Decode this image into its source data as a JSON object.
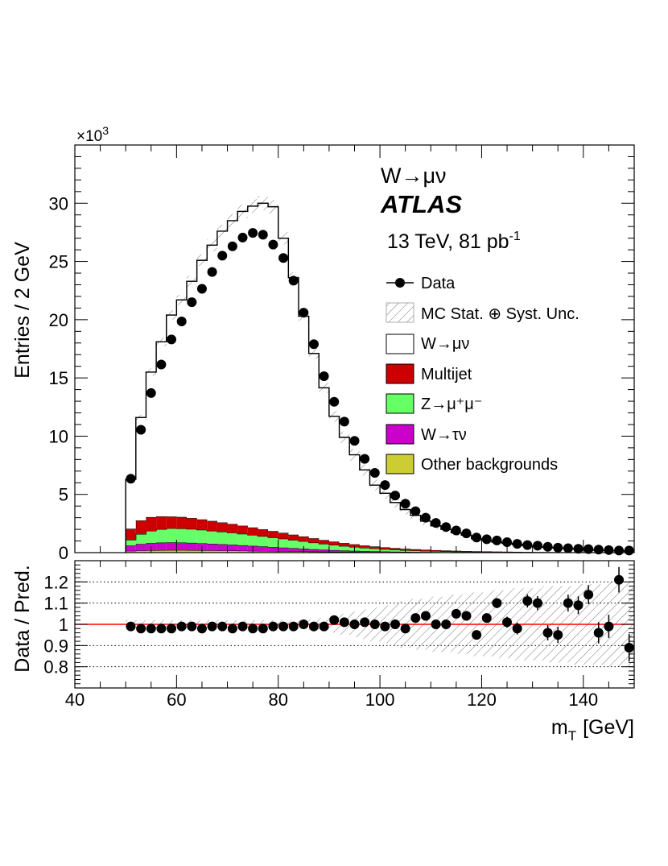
{
  "chart_data": [
    {
      "panel": "main",
      "type": "stacked-histogram",
      "ylabel": "Entries / 2 GeV",
      "yscale_label": "×10",
      "yscale_exp": "3",
      "ylim": [
        0,
        35000
      ],
      "yticks": [
        0,
        5000,
        10000,
        15000,
        20000,
        25000,
        30000
      ],
      "ytick_labels": [
        "0",
        "5",
        "10",
        "15",
        "20",
        "25",
        "30"
      ],
      "xlim": [
        40,
        150
      ],
      "bin_width": 2,
      "bin_lo": [
        50,
        52,
        54,
        56,
        58,
        60,
        62,
        64,
        66,
        68,
        70,
        72,
        74,
        76,
        78,
        80,
        82,
        84,
        86,
        88,
        90,
        92,
        94,
        96,
        98,
        100,
        102,
        104,
        106,
        108,
        110,
        112,
        114,
        116,
        118,
        120,
        122,
        124,
        126,
        128,
        130,
        132,
        134,
        136,
        138,
        140,
        142,
        144,
        146,
        148
      ],
      "series": [
        {
          "name": "Other backgrounds",
          "color": "#cccc33",
          "values": [
            150,
            180,
            200,
            210,
            220,
            215,
            210,
            200,
            190,
            180,
            170,
            160,
            150,
            140,
            130,
            120,
            110,
            100,
            90,
            80,
            70,
            62,
            55,
            48,
            42,
            37,
            32,
            28,
            25,
            22,
            19,
            17,
            15,
            13,
            12,
            11,
            10,
            9,
            8,
            7,
            6,
            6,
            5,
            5,
            4,
            4,
            3,
            3,
            3,
            3
          ]
        },
        {
          "name": "W→τν",
          "color": "#cc00cc",
          "values": [
            450,
            560,
            620,
            650,
            660,
            650,
            630,
            600,
            570,
            540,
            510,
            470,
            430,
            390,
            350,
            310,
            270,
            235,
            200,
            170,
            145,
            120,
            100,
            85,
            70,
            58,
            48,
            40,
            33,
            27,
            22,
            18,
            15,
            12,
            10,
            9,
            8,
            7,
            6,
            5,
            4,
            4,
            3,
            3,
            3,
            2,
            2,
            2,
            2,
            2
          ]
        },
        {
          "name": "Z→μ⁺μ⁻",
          "color": "#66ff66",
          "values": [
            500,
            850,
            1050,
            1150,
            1200,
            1200,
            1180,
            1150,
            1110,
            1070,
            1030,
            980,
            930,
            880,
            820,
            760,
            700,
            640,
            570,
            500,
            440,
            380,
            330,
            280,
            240,
            200,
            170,
            140,
            120,
            100,
            85,
            70,
            60,
            50,
            42,
            36,
            30,
            25,
            21,
            18,
            15,
            13,
            11,
            9,
            8,
            7,
            6,
            5,
            4,
            4
          ]
        },
        {
          "name": "Multijet",
          "color": "#cc0000",
          "values": [
            950,
            1170,
            1180,
            1100,
            1020,
            1000,
            950,
            900,
            850,
            800,
            750,
            700,
            650,
            590,
            550,
            510,
            460,
            415,
            370,
            330,
            290,
            260,
            230,
            200,
            178,
            158,
            140,
            125,
            111,
            99,
            88,
            78,
            70,
            62,
            55,
            49,
            44,
            40,
            36,
            32,
            29,
            26,
            24,
            22,
            20,
            18,
            16,
            15,
            14,
            13
          ]
        },
        {
          "name": "W→μν",
          "color": "#ffffff",
          "values": [
            4250,
            8840,
            12450,
            14990,
            17300,
            18635,
            20330,
            22250,
            23680,
            25010,
            26040,
            26990,
            27590,
            28000,
            27850,
            25300,
            22060,
            18910,
            15870,
            13070,
            10755,
            9078,
            7685,
            6487,
            5270,
            4647,
            3910,
            3367,
            2911,
            2452,
            2086,
            1817,
            1540,
            1363,
            1081,
            945,
            808,
            719,
            629,
            538,
            446,
            401,
            357,
            311,
            265,
            219,
            173,
            145,
            127,
            108
          ]
        }
      ],
      "data_name": "Data",
      "data": [
        6350,
        10550,
        13700,
        16150,
        18300,
        19850,
        21500,
        22650,
        24100,
        25500,
        26300,
        27050,
        27450,
        27300,
        26450,
        25300,
        23350,
        20600,
        17900,
        15150,
        12950,
        11250,
        9600,
        8050,
        6850,
        5800,
        4900,
        4200,
        3550,
        3000,
        2550,
        2200,
        1900,
        1650,
        1300,
        1150,
        1050,
        900,
        750,
        650,
        600,
        500,
        420,
        380,
        330,
        300,
        260,
        220,
        180,
        180
      ],
      "band_name": "MC Stat. ⊕ Syst. Unc.",
      "legend_entries": [
        "Data",
        "MC Stat. ⊕ Syst. Unc.",
        "W→μν",
        "Multijet",
        "Z→μ⁺μ⁻",
        "W→τν",
        "Other backgrounds"
      ],
      "legend_position": "top-right",
      "annotations": {
        "process": "W→μν",
        "experiment": "ATLAS",
        "energy": "13 TeV, 81 pb",
        "energy_sup": "-1"
      }
    },
    {
      "panel": "ratio",
      "type": "scatter",
      "ylabel": "Data / Pred.",
      "ylim": [
        0.7,
        1.3
      ],
      "yticks": [
        0.8,
        0.9,
        1.0,
        1.1,
        1.2
      ],
      "ytick_labels": [
        "0.8",
        "0.9",
        "1",
        "1.1",
        "1.2"
      ],
      "xlabel": "m",
      "xlabel_sub": "T",
      "xlabel_unit": "[GeV]",
      "xlim": [
        40,
        150
      ],
      "xticks": [
        40,
        60,
        80,
        100,
        120,
        140
      ],
      "xtick_labels": [
        "40",
        "60",
        "80",
        "100",
        "120",
        "140"
      ],
      "grid": "dotted horizontal",
      "reference_line": 1.0,
      "x": [
        51,
        53,
        55,
        57,
        59,
        61,
        63,
        65,
        67,
        69,
        71,
        73,
        75,
        77,
        79,
        81,
        83,
        85,
        87,
        89,
        91,
        93,
        95,
        97,
        99,
        101,
        103,
        105,
        107,
        109,
        111,
        113,
        115,
        117,
        119,
        121,
        123,
        125,
        127,
        129,
        131,
        133,
        135,
        137,
        139,
        141,
        143,
        145,
        147,
        149
      ],
      "ratio": [
        0.99,
        0.98,
        0.98,
        0.98,
        0.98,
        0.99,
        0.99,
        0.98,
        0.99,
        0.99,
        0.98,
        0.99,
        0.98,
        0.98,
        0.99,
        0.99,
        0.99,
        1.0,
        0.99,
        0.99,
        1.02,
        1.01,
        1.0,
        1.01,
        1.0,
        0.99,
        1.0,
        0.98,
        1.03,
        1.04,
        1.0,
        1.0,
        1.05,
        1.04,
        0.95,
        1.03,
        1.1,
        1.01,
        0.98,
        1.11,
        1.1,
        0.96,
        0.95,
        1.1,
        1.09,
        1.14,
        0.96,
        0.99,
        1.21,
        0.89
      ],
      "error": [
        0.005,
        0.005,
        0.005,
        0.005,
        0.005,
        0.005,
        0.005,
        0.005,
        0.005,
        0.005,
        0.005,
        0.005,
        0.005,
        0.005,
        0.005,
        0.005,
        0.005,
        0.005,
        0.006,
        0.006,
        0.007,
        0.008,
        0.008,
        0.009,
        0.01,
        0.011,
        0.012,
        0.013,
        0.014,
        0.015,
        0.016,
        0.017,
        0.018,
        0.019,
        0.02,
        0.021,
        0.024,
        0.026,
        0.028,
        0.031,
        0.033,
        0.036,
        0.038,
        0.04,
        0.042,
        0.045,
        0.05,
        0.055,
        0.06,
        0.065
      ],
      "band": [
        0.02,
        0.02,
        0.02,
        0.02,
        0.02,
        0.02,
        0.02,
        0.02,
        0.02,
        0.02,
        0.02,
        0.02,
        0.02,
        0.02,
        0.02,
        0.02,
        0.02,
        0.02,
        0.025,
        0.03,
        0.04,
        0.05,
        0.06,
        0.07,
        0.08,
        0.09,
        0.1,
        0.11,
        0.12,
        0.12,
        0.13,
        0.13,
        0.14,
        0.14,
        0.15,
        0.15,
        0.16,
        0.16,
        0.17,
        0.17,
        0.17,
        0.18,
        0.18,
        0.18,
        0.19,
        0.19,
        0.19,
        0.2,
        0.2,
        0.2
      ]
    }
  ]
}
